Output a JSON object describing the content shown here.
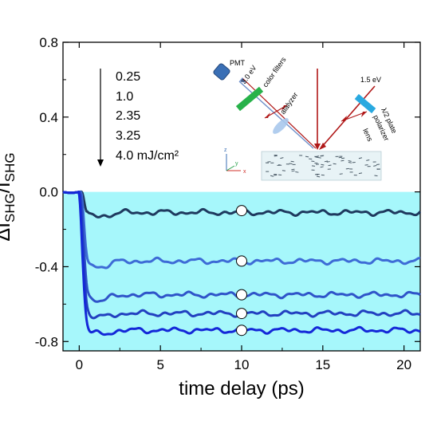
{
  "chart_data": {
    "type": "line",
    "xlabel": "time delay  (ps)",
    "ylabel": {
      "main": "ΔI",
      "sub": "SHG",
      "sep": "/I",
      "sub2": "SHG"
    },
    "xlim": [
      -1,
      21
    ],
    "ylim": [
      -0.85,
      0.8
    ],
    "xticks": [
      0,
      5,
      10,
      15,
      20
    ],
    "xtick_labels": [
      "0",
      "5",
      "10",
      "15",
      "20"
    ],
    "yticks": [
      0.8,
      0.4,
      0.0,
      -0.4,
      -0.8
    ],
    "ytick_labels": [
      "0.8",
      "0.4",
      "0.0",
      "-0.4",
      "-0.8"
    ],
    "shaded_region": {
      "from": 0.0,
      "to": -0.85,
      "color": "#a6f7fb"
    },
    "legend_values": [
      "0.25",
      "1.0",
      "2.35",
      "3.25",
      "4.0 mJ/cm²"
    ],
    "legend_arrow": "downward",
    "markers": {
      "x": 10,
      "y": [
        -0.1,
        -0.37,
        -0.55,
        -0.65,
        -0.74
      ],
      "style": "open-circle"
    },
    "series": [
      {
        "color": "#1f3a5f",
        "plateau": -0.11,
        "min": -0.13,
        "onset": 0.35,
        "fall": 0.2
      },
      {
        "color": "#3d6bd6",
        "plateau": -0.37,
        "min": -0.4,
        "onset": 0.3,
        "fall": 0.25
      },
      {
        "color": "#2f54c9",
        "plateau": -0.55,
        "min": -0.58,
        "onset": 0.25,
        "fall": 0.28
      },
      {
        "color": "#2240c0",
        "plateau": -0.65,
        "min": -0.67,
        "onset": 0.2,
        "fall": 0.3
      },
      {
        "color": "#1428d8",
        "plateau": -0.74,
        "min": -0.76,
        "onset": 0.15,
        "fall": 0.32
      }
    ],
    "series_x_range": [
      -1,
      21
    ]
  },
  "inset": {
    "labels": {
      "pmt": "PMT",
      "energy_probe": "3.0 eV",
      "color_filters": "color filters",
      "analyzer": "alalyzer",
      "energy_pump": "1.5 eV",
      "half_wave_plate": "λ/2 plate",
      "polarizer": "polarizer",
      "lens": "lens",
      "axis_z": "z",
      "axis_y": "y",
      "axis_x": "x"
    },
    "colors": {
      "pmt": "#3a6fb5",
      "color_filters": "#27b24a",
      "half_wave_plate": "#29a9e0",
      "lens": "#a9c8ec",
      "beam": "#b01818",
      "probe_beam": "#6e8fc9",
      "sample": "#e8f3f6"
    }
  }
}
